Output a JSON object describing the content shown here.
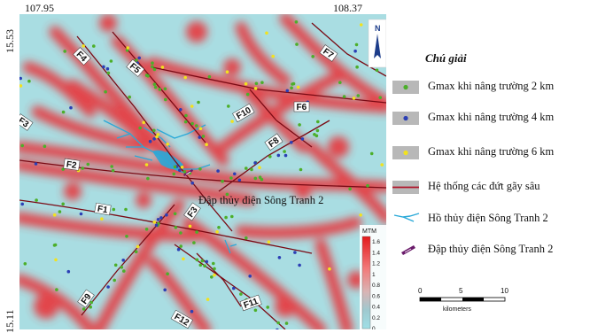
{
  "coordinates": {
    "lon_left": "107.95",
    "lon_right": "108.37",
    "lat_top": "15.53",
    "lat_bottom": "15.11"
  },
  "map": {
    "faults": [
      "F1",
      "F2",
      "F3",
      "F3",
      "F4",
      "F5",
      "F6",
      "F7",
      "F8",
      "F9",
      "F10",
      "F11",
      "F12"
    ],
    "dam_label": "Đập thủy điện Sông Tranh 2",
    "north_arrow_letter": "N",
    "colors": {
      "background": "#a9dde2",
      "anomaly": "#e8363a",
      "fault_line": "#7a0a14",
      "reservoir": "#2aa9d8",
      "point_2km": "#4caf2a",
      "point_4km": "#2b3fb5",
      "point_6km": "#f2e21e"
    }
  },
  "colorbar": {
    "title": "MTM",
    "ticks": [
      "1.6",
      "1.4",
      "1.2",
      "1",
      "0.8",
      "0.6",
      "0.4",
      "0.2",
      "0"
    ]
  },
  "legend": {
    "title": "Chú giải",
    "items": [
      {
        "label": "Gmax khi nâng trường 2 km",
        "icon": "green-dot"
      },
      {
        "label": "Gmax khi nâng trường 4 km",
        "icon": "blue-dot"
      },
      {
        "label": "Gmax khi nâng trường 6 km",
        "icon": "yellow-dot"
      },
      {
        "label": "Hệ thống các đứt gãy sâu",
        "icon": "fault-line"
      },
      {
        "label": "Hồ thủy điện Sông Tranh 2",
        "icon": "reservoir-line"
      },
      {
        "label": "Đập thủy điện Sông Tranh 2",
        "icon": "dam-symbol"
      }
    ]
  },
  "scale": {
    "ticks": [
      "0",
      "5",
      "10"
    ],
    "unit": "kilometers"
  }
}
